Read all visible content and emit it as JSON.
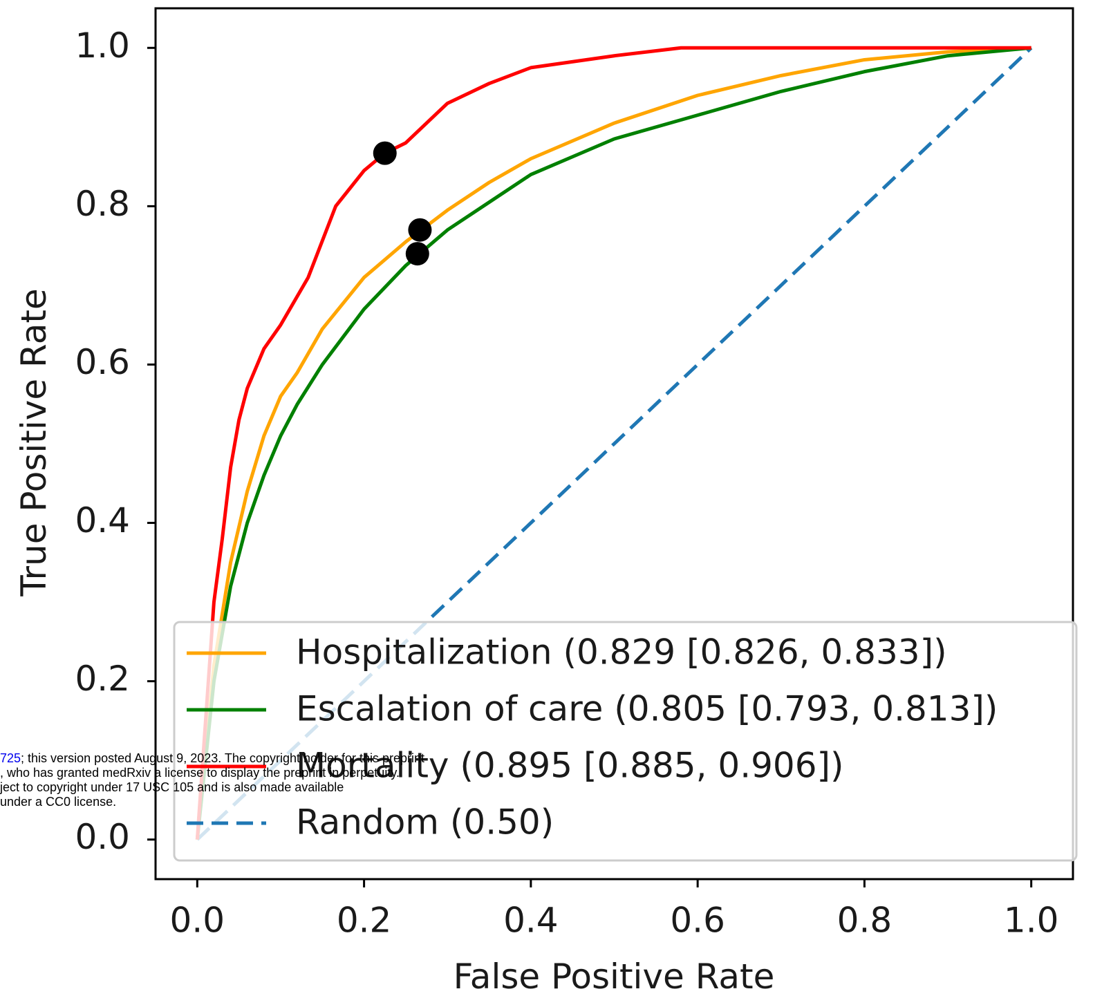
{
  "chart_data": {
    "type": "line",
    "xlabel": "False Positive Rate",
    "ylabel": "True Positive Rate",
    "xlim": [
      -0.05,
      1.05
    ],
    "ylim": [
      -0.05,
      1.05
    ],
    "xticks": [
      {
        "value": 0,
        "label": "0.0"
      },
      0.2,
      0.4,
      0.6,
      0.8,
      {
        "value": 1,
        "label": "1.0"
      }
    ],
    "yticks": [
      {
        "value": 0,
        "label": "0.0"
      },
      0.2,
      0.4,
      0.6,
      0.8,
      {
        "value": 1,
        "label": "1.0"
      }
    ],
    "legend": "lower right",
    "series": [
      {
        "name": "Hospitalization (0.829 [0.826, 0.833])",
        "color": "#ffa500",
        "linestyle": "solid",
        "x": [
          0,
          0.02,
          0.04,
          0.06,
          0.08,
          0.1,
          0.12,
          0.15,
          0.2,
          0.25,
          0.3,
          0.35,
          0.4,
          0.5,
          0.6,
          0.7,
          0.8,
          0.9,
          1
        ],
        "values": [
          0,
          0.22,
          0.35,
          0.44,
          0.51,
          0.56,
          0.59,
          0.645,
          0.71,
          0.755,
          0.795,
          0.83,
          0.86,
          0.905,
          0.94,
          0.965,
          0.985,
          0.995,
          1
        ]
      },
      {
        "name": "Escalation of care (0.805 [0.793, 0.813])",
        "color": "#008000",
        "linestyle": "solid",
        "x": [
          0,
          0.02,
          0.04,
          0.06,
          0.08,
          0.1,
          0.12,
          0.15,
          0.2,
          0.25,
          0.3,
          0.35,
          0.4,
          0.5,
          0.6,
          0.7,
          0.8,
          0.9,
          1
        ],
        "values": [
          0,
          0.2,
          0.32,
          0.4,
          0.46,
          0.51,
          0.55,
          0.6,
          0.67,
          0.725,
          0.77,
          0.805,
          0.84,
          0.885,
          0.915,
          0.945,
          0.97,
          0.99,
          1
        ]
      },
      {
        "name": "Mortality (0.895 [0.885, 0.906])",
        "color": "#ff0000",
        "linestyle": "solid",
        "x": [
          0,
          0.01,
          0.02,
          0.03,
          0.04,
          0.05,
          0.06,
          0.08,
          0.1,
          0.133,
          0.166,
          0.2,
          0.225,
          0.25,
          0.28,
          0.3,
          0.35,
          0.4,
          0.5,
          0.58,
          1
        ],
        "values": [
          0,
          0.15,
          0.3,
          0.38,
          0.47,
          0.53,
          0.57,
          0.62,
          0.65,
          0.71,
          0.8,
          0.845,
          0.867,
          0.88,
          0.91,
          0.93,
          0.955,
          0.975,
          0.99,
          1,
          1
        ]
      },
      {
        "name": "Random (0.50)",
        "color": "#1f77b4",
        "linestyle": "dashed",
        "x": [
          0,
          1
        ],
        "values": [
          0,
          1
        ]
      }
    ],
    "operating_points": {
      "color": "#000000",
      "x": [
        0.225,
        0.267,
        0.264
      ],
      "values": [
        0.867,
        0.77,
        0.74
      ]
    }
  },
  "overlay_text": {
    "link": "725",
    "lines": [
      "; this version posted August 9, 2023. The copyright holder for this preprint",
      ", who has granted medRxiv a license to display the preprint in perpetuity.",
      "ject to copyright under 17 USC 105 and is also made available",
      "under a CC0 license."
    ]
  }
}
